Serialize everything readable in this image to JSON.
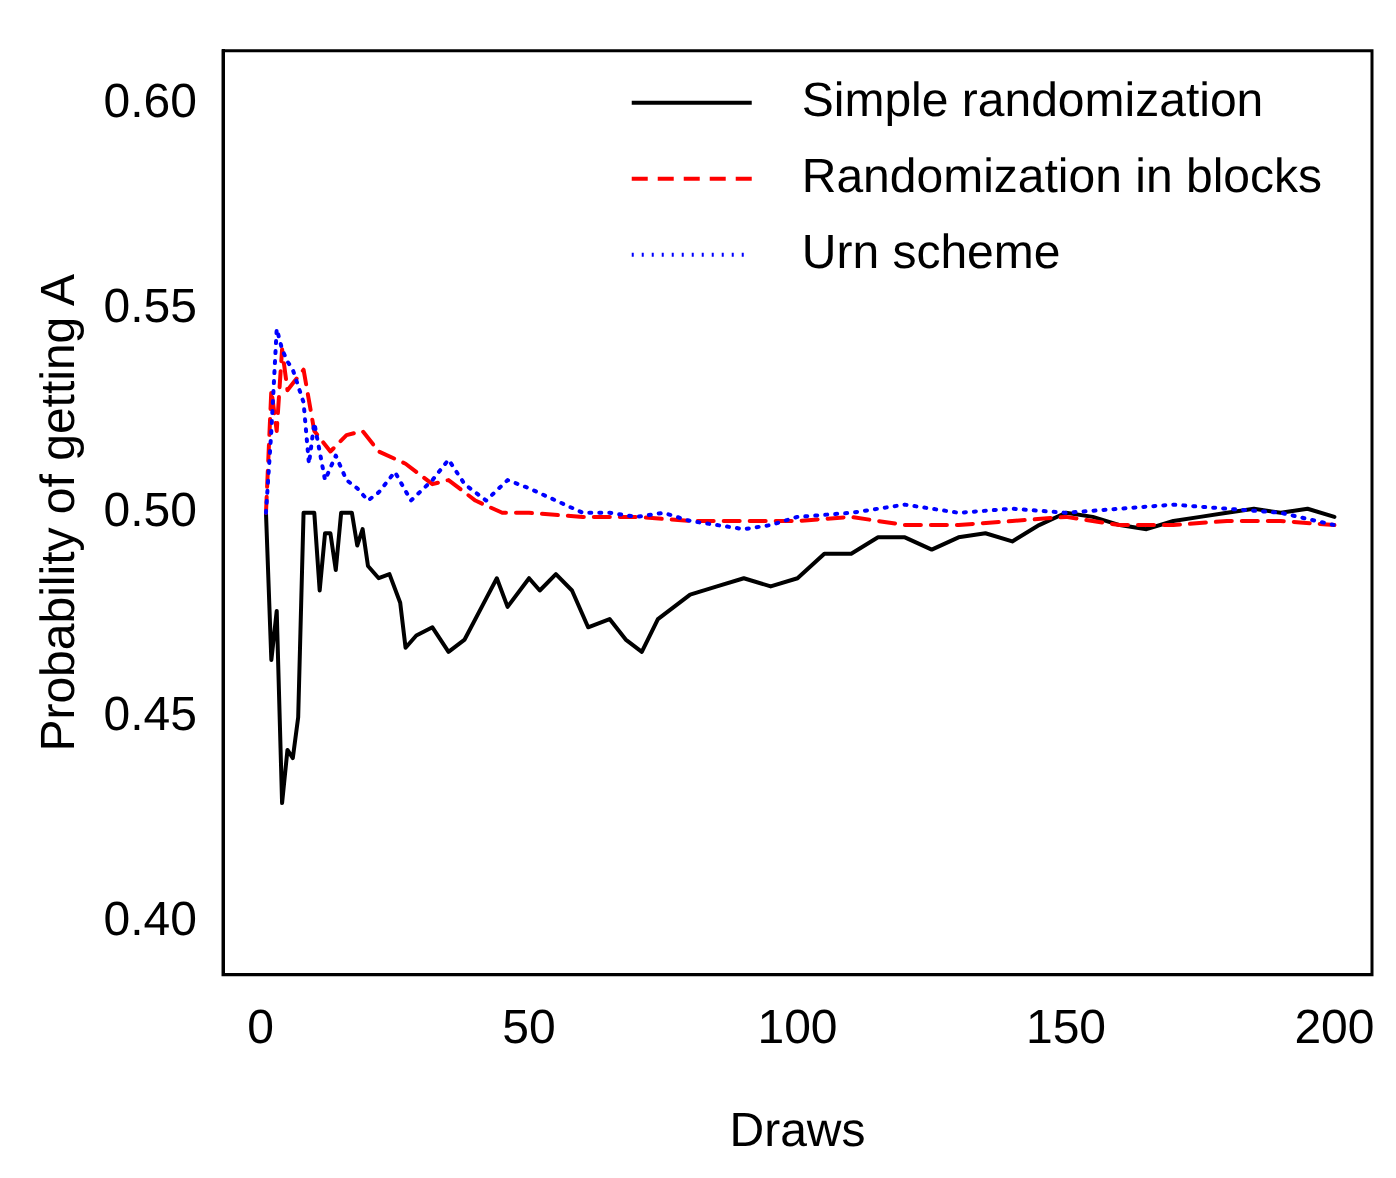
{
  "chart_data": {
    "type": "line",
    "xlabel": "Draws",
    "ylabel": "Probability of getting A",
    "xlim": [
      -7,
      207
    ],
    "xticks": [
      0,
      50,
      100,
      150,
      200
    ],
    "ylim": [
      0.387,
      0.613
    ],
    "yticks": [
      {
        "value": 0.4,
        "label": "0.40"
      },
      0.45,
      {
        "value": 0.5,
        "label": "0.50"
      },
      0.55,
      {
        "value": 0.6,
        "label": "0.60"
      }
    ],
    "grid": false,
    "legend": "top right",
    "marker": "none",
    "series": [
      {
        "name": "Simple randomization",
        "color": "#000000",
        "line_style": "solid",
        "x": [
          1,
          2,
          3,
          4,
          5,
          6,
          7,
          8,
          10,
          11,
          12,
          13,
          14,
          15,
          17,
          18,
          19,
          20,
          22,
          24,
          26,
          27,
          29,
          32,
          35,
          38,
          42,
          44,
          46,
          50,
          52,
          55,
          58,
          61,
          65,
          68,
          71,
          74,
          80,
          85,
          90,
          95,
          100,
          105,
          110,
          115,
          120,
          125,
          130,
          135,
          140,
          145,
          150,
          155,
          160,
          165,
          170,
          175,
          180,
          185,
          190,
          195,
          200
        ],
        "values": [
          0.5,
          0.464,
          0.476,
          0.429,
          0.442,
          0.44,
          0.45,
          0.5,
          0.5,
          0.481,
          0.495,
          0.495,
          0.486,
          0.5,
          0.5,
          0.492,
          0.496,
          0.487,
          0.484,
          0.485,
          0.478,
          0.467,
          0.47,
          0.472,
          0.466,
          0.469,
          0.479,
          0.484,
          0.477,
          0.484,
          0.481,
          0.485,
          0.481,
          0.472,
          0.474,
          0.469,
          0.466,
          0.474,
          0.48,
          0.482,
          0.484,
          0.482,
          0.484,
          0.49,
          0.49,
          0.494,
          0.494,
          0.491,
          0.494,
          0.495,
          0.493,
          0.497,
          0.5,
          0.499,
          0.497,
          0.496,
          0.498,
          0.499,
          0.5,
          0.501,
          0.5,
          0.501,
          0.499
        ]
      },
      {
        "name": "Randomization in blocks",
        "color": "#ff0000",
        "line_style": "dashed",
        "x": [
          1,
          2,
          3,
          4,
          5,
          8,
          10,
          13,
          16,
          19,
          22,
          27,
          32,
          35,
          40,
          45,
          50,
          60,
          70,
          80,
          90,
          100,
          110,
          120,
          130,
          140,
          150,
          160,
          170,
          180,
          190,
          200
        ],
        "values": [
          0.5,
          0.53,
          0.52,
          0.54,
          0.53,
          0.535,
          0.52,
          0.515,
          0.519,
          0.52,
          0.515,
          0.512,
          0.507,
          0.508,
          0.503,
          0.5,
          0.5,
          0.499,
          0.499,
          0.498,
          0.498,
          0.498,
          0.499,
          0.497,
          0.497,
          0.498,
          0.499,
          0.497,
          0.497,
          0.498,
          0.498,
          0.497
        ]
      },
      {
        "name": "Urn scheme",
        "color": "#0000ff",
        "line_style": "dotted",
        "x": [
          1,
          2,
          3,
          4,
          5,
          6,
          8,
          9,
          10,
          12,
          14,
          16,
          18,
          20,
          22,
          25,
          28,
          32,
          35,
          38,
          42,
          46,
          50,
          55,
          60,
          65,
          70,
          75,
          80,
          85,
          90,
          95,
          100,
          110,
          120,
          130,
          140,
          150,
          160,
          170,
          180,
          190,
          200
        ],
        "values": [
          0.5,
          0.52,
          0.545,
          0.54,
          0.537,
          0.535,
          0.527,
          0.512,
          0.522,
          0.508,
          0.514,
          0.508,
          0.506,
          0.503,
          0.505,
          0.51,
          0.503,
          0.508,
          0.513,
          0.507,
          0.503,
          0.508,
          0.506,
          0.503,
          0.5,
          0.5,
          0.499,
          0.5,
          0.498,
          0.497,
          0.496,
          0.497,
          0.499,
          0.5,
          0.502,
          0.5,
          0.501,
          0.5,
          0.501,
          0.502,
          0.501,
          0.5,
          0.497
        ]
      }
    ]
  }
}
